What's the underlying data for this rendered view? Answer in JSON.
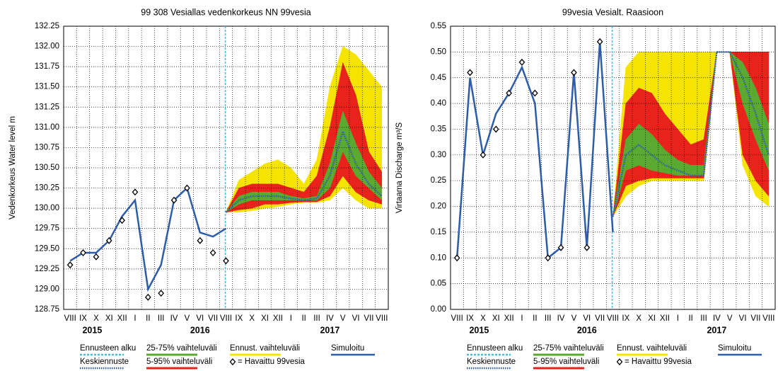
{
  "chart_data": [
    {
      "type": "line",
      "title": "99 308 Vesiallas vedenkorkeus NN 99vesia",
      "y_label": "Vedenkorkeus Water level m",
      "categories": [
        "VIII",
        "IX",
        "X",
        "XI",
        "XII",
        "I",
        "II",
        "III",
        "IV",
        "V",
        "VI",
        "VII",
        "VIII",
        "IX",
        "X",
        "XI",
        "XII",
        "I",
        "II",
        "III",
        "IV",
        "V",
        "VI",
        "VII",
        "VIII"
      ],
      "years": [
        "2015",
        "2016",
        "2017"
      ],
      "forecast_start_label": "Ennusteen alku",
      "forecast_start_color": "#4ab8d8",
      "ylim": [
        128.75,
        132.25
      ],
      "yticks": [
        128.75,
        {
          "value": 129,
          "label": "129.00"
        },
        129.25,
        {
          "value": 129.5,
          "label": "129.50"
        },
        129.75,
        {
          "value": 130,
          "label": "130.00"
        },
        130.25,
        {
          "value": 130.5,
          "label": "130.50"
        },
        130.75,
        {
          "value": 131,
          "label": "131.00"
        },
        131.25,
        {
          "value": 131.5,
          "label": "131.50"
        },
        131.75,
        {
          "value": 132,
          "label": "132.00"
        },
        132.25
      ],
      "grid": true,
      "series": [
        {
          "name": "Ennust. vaihteluväli",
          "kind": "band",
          "color": "#f5e400",
          "low": [
            null,
            null,
            null,
            null,
            null,
            null,
            null,
            null,
            null,
            null,
            null,
            null,
            129.95,
            129.95,
            129.97,
            130.0,
            130.02,
            130.05,
            130.07,
            130.07,
            130.1,
            130.25,
            130.1,
            130.0,
            130.0
          ],
          "high": [
            null,
            null,
            null,
            null,
            null,
            null,
            null,
            null,
            null,
            null,
            null,
            null,
            129.95,
            130.35,
            130.45,
            130.55,
            130.6,
            130.5,
            130.3,
            130.6,
            131.5,
            132.0,
            131.9,
            131.7,
            131.5
          ]
        },
        {
          "name": "5-95% vaihteluväli",
          "kind": "band",
          "color": "#e8231b",
          "low": [
            null,
            null,
            null,
            null,
            null,
            null,
            null,
            null,
            null,
            null,
            null,
            null,
            129.95,
            129.98,
            130.0,
            130.05,
            130.05,
            130.07,
            130.08,
            130.08,
            130.15,
            130.4,
            130.2,
            130.1,
            130.05
          ],
          "high": [
            null,
            null,
            null,
            null,
            null,
            null,
            null,
            null,
            null,
            null,
            null,
            null,
            129.95,
            130.25,
            130.3,
            130.3,
            130.3,
            130.25,
            130.2,
            130.4,
            131.0,
            131.8,
            131.4,
            130.7,
            130.45
          ]
        },
        {
          "name": "25-75% vaihteluväli",
          "kind": "band",
          "color": "#5aaa32",
          "low": [
            null,
            null,
            null,
            null,
            null,
            null,
            null,
            null,
            null,
            null,
            null,
            null,
            129.95,
            130.05,
            130.1,
            130.1,
            130.1,
            130.1,
            130.1,
            130.1,
            130.25,
            130.7,
            130.4,
            130.25,
            130.1
          ],
          "high": [
            null,
            null,
            null,
            null,
            null,
            null,
            null,
            null,
            null,
            null,
            null,
            null,
            129.95,
            130.15,
            130.2,
            130.2,
            130.2,
            130.15,
            130.12,
            130.15,
            130.55,
            131.2,
            130.8,
            130.45,
            130.25
          ]
        },
        {
          "name": "Simuloitu",
          "kind": "line",
          "color": "#2e5ca8",
          "values": [
            129.35,
            129.45,
            129.45,
            129.6,
            129.9,
            130.1,
            129.0,
            129.3,
            130.1,
            130.25,
            129.7,
            129.65,
            129.75,
            null,
            null,
            null,
            null,
            null,
            null,
            null,
            null,
            null,
            null,
            null,
            null
          ]
        },
        {
          "name": "Keskiennuste",
          "kind": "dotted",
          "color": "#2e5ca8",
          "values": [
            null,
            null,
            null,
            null,
            null,
            null,
            null,
            null,
            null,
            null,
            null,
            null,
            129.95,
            130.1,
            130.15,
            130.15,
            130.15,
            130.12,
            130.1,
            130.12,
            130.4,
            130.95,
            130.55,
            130.3,
            130.15
          ]
        },
        {
          "name": "= Havaittu 99vesia",
          "kind": "points",
          "color": "#000000",
          "values": [
            129.3,
            129.45,
            129.4,
            129.6,
            129.85,
            130.2,
            128.9,
            128.95,
            130.1,
            130.25,
            129.6,
            129.45,
            129.35,
            null,
            null,
            null,
            null,
            null,
            null,
            null,
            null,
            null,
            null,
            null,
            null
          ]
        }
      ]
    },
    {
      "type": "line",
      "title": "99vesia Vesialt. Raasioon",
      "y_label": "Virtaama Discharge m³/S",
      "categories": [
        "VIII",
        "IX",
        "X",
        "XI",
        "XII",
        "I",
        "II",
        "III",
        "IV",
        "V",
        "VI",
        "VII",
        "VIII",
        "IX",
        "X",
        "XI",
        "XII",
        "I",
        "II",
        "III",
        "IV",
        "V",
        "VI",
        "VII",
        "VIII"
      ],
      "years": [
        "2015",
        "2016",
        "2017"
      ],
      "forecast_start_label": "Ennusteen alku",
      "forecast_start_color": "#4ab8d8",
      "ylim": [
        0,
        0.55
      ],
      "yticks": [
        {
          "value": 0,
          "label": "0.00"
        },
        0.05,
        {
          "value": 0.1,
          "label": "0.10"
        },
        0.15,
        {
          "value": 0.2,
          "label": "0.20"
        },
        0.25,
        {
          "value": 0.3,
          "label": "0.30"
        },
        0.35,
        {
          "value": 0.4,
          "label": "0.40"
        },
        0.45,
        {
          "value": 0.5,
          "label": "0.50"
        },
        0.55
      ],
      "grid": true,
      "series": [
        {
          "name": "Ennust. vaihteluväli",
          "kind": "band",
          "color": "#f5e400",
          "low": [
            null,
            null,
            null,
            null,
            null,
            null,
            null,
            null,
            null,
            null,
            null,
            null,
            0.18,
            0.22,
            0.24,
            0.25,
            0.25,
            0.25,
            0.25,
            0.25,
            0.5,
            0.5,
            0.28,
            0.22,
            0.2
          ],
          "high": [
            null,
            null,
            null,
            null,
            null,
            null,
            null,
            null,
            null,
            null,
            null,
            null,
            0.18,
            0.47,
            0.5,
            0.5,
            0.5,
            0.5,
            0.5,
            0.5,
            0.5,
            0.5,
            0.5,
            0.5,
            0.5
          ]
        },
        {
          "name": "5-95% vaihteluväli",
          "kind": "band",
          "color": "#e8231b",
          "low": [
            null,
            null,
            null,
            null,
            null,
            null,
            null,
            null,
            null,
            null,
            null,
            null,
            0.18,
            0.24,
            0.25,
            0.255,
            0.255,
            0.255,
            0.255,
            0.255,
            0.5,
            0.5,
            0.3,
            0.25,
            0.22
          ],
          "high": [
            null,
            null,
            null,
            null,
            null,
            null,
            null,
            null,
            null,
            null,
            null,
            null,
            0.18,
            0.4,
            0.43,
            0.42,
            0.38,
            0.35,
            0.32,
            0.33,
            0.5,
            0.5,
            0.5,
            0.5,
            0.5
          ]
        },
        {
          "name": "25-75% vaihteluväli",
          "kind": "band",
          "color": "#5aaa32",
          "low": [
            null,
            null,
            null,
            null,
            null,
            null,
            null,
            null,
            null,
            null,
            null,
            null,
            0.18,
            0.27,
            0.28,
            0.27,
            0.265,
            0.26,
            0.26,
            0.26,
            0.5,
            0.5,
            0.4,
            0.33,
            0.27
          ],
          "high": [
            null,
            null,
            null,
            null,
            null,
            null,
            null,
            null,
            null,
            null,
            null,
            null,
            0.18,
            0.33,
            0.36,
            0.34,
            0.31,
            0.29,
            0.28,
            0.28,
            0.5,
            0.5,
            0.48,
            0.43,
            0.36
          ]
        },
        {
          "name": "Simuloitu",
          "kind": "line",
          "color": "#2e5ca8",
          "values": [
            0.1,
            0.45,
            0.3,
            0.38,
            0.42,
            0.47,
            0.4,
            0.1,
            0.12,
            0.46,
            0.12,
            0.52,
            0.15,
            null,
            null,
            null,
            null,
            null,
            null,
            null,
            null,
            null,
            null,
            null,
            null
          ]
        },
        {
          "name": "Keskiennuste",
          "kind": "dotted",
          "color": "#2e5ca8",
          "values": [
            null,
            null,
            null,
            null,
            null,
            null,
            null,
            null,
            null,
            null,
            null,
            null,
            0.18,
            0.3,
            0.32,
            0.3,
            0.28,
            0.27,
            0.26,
            0.26,
            0.5,
            0.5,
            0.45,
            0.38,
            0.3
          ]
        },
        {
          "name": "= Havaittu 99vesia",
          "kind": "points",
          "color": "#000000",
          "values": [
            0.1,
            0.46,
            0.3,
            0.35,
            0.42,
            0.48,
            0.42,
            0.1,
            0.12,
            0.46,
            0.12,
            0.52,
            null,
            null,
            null,
            null,
            null,
            null,
            null,
            null,
            null,
            null,
            null,
            null,
            null
          ]
        }
      ]
    }
  ]
}
